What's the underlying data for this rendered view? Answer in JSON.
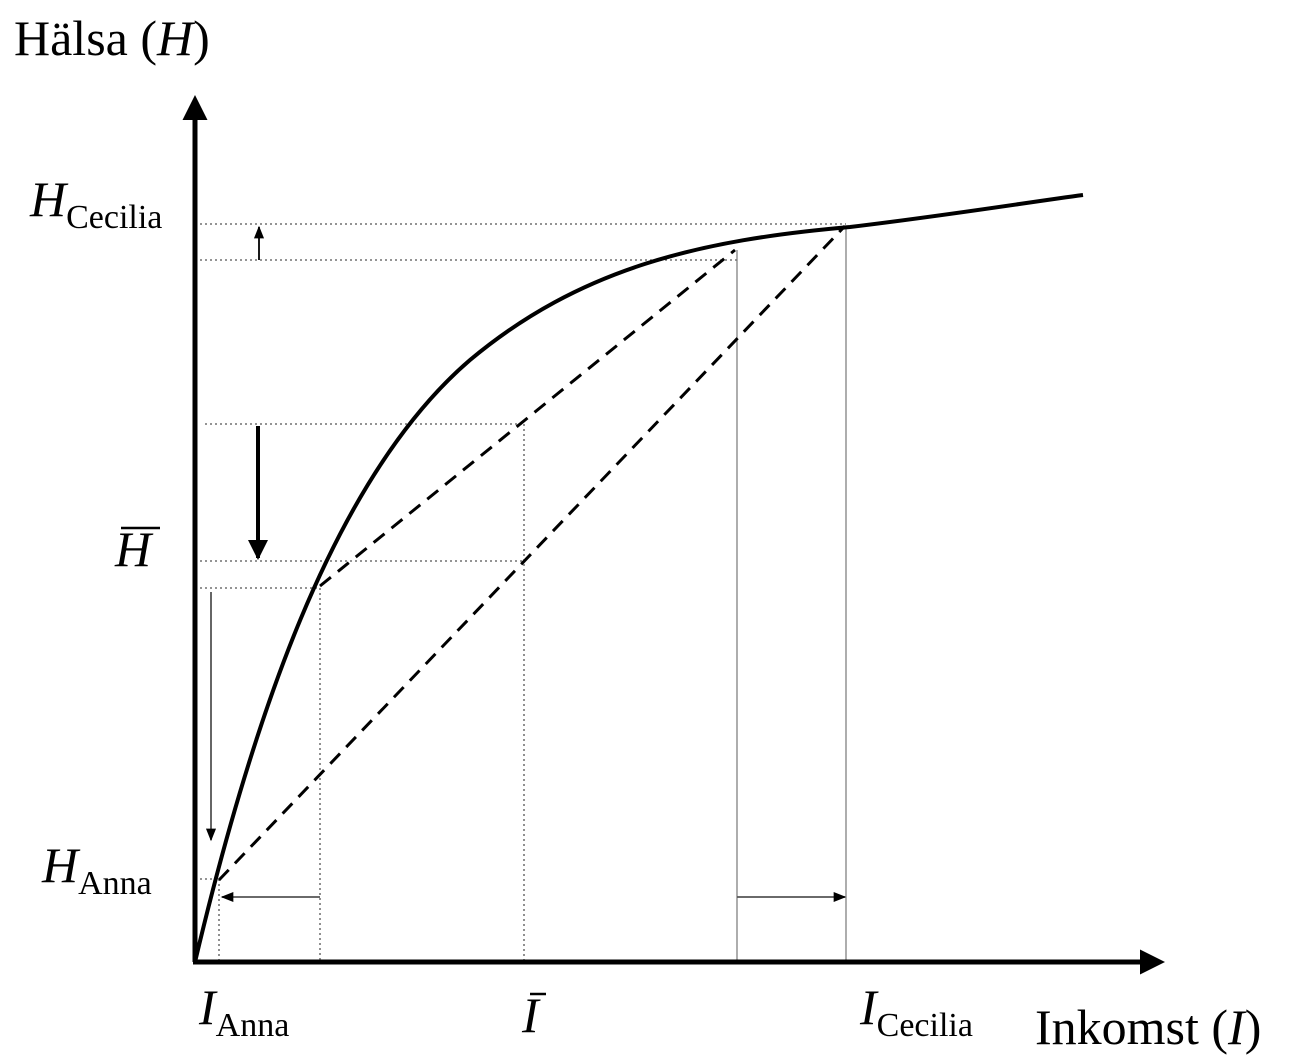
{
  "diagram": {
    "y_axis_label": {
      "prefix": "Hälsa (",
      "symbol": "H",
      "suffix": ")"
    },
    "x_axis_label": {
      "prefix": "Inkomst (",
      "symbol": "I",
      "suffix": ")"
    },
    "y_labels": {
      "h_cecilia": {
        "main": "H",
        "sub": "Cecilia"
      },
      "h_bar": {
        "main": "H"
      },
      "h_anna": {
        "main": "H",
        "sub": "Anna"
      }
    },
    "x_labels": {
      "i_anna": {
        "main": "I",
        "sub": "Anna"
      },
      "i_bar": {
        "main": "I"
      },
      "i_cecilia": {
        "main": "I",
        "sub": "Cecilia"
      }
    },
    "line_style": {
      "curve": "solid",
      "chords": "dashed",
      "guides": "dotted"
    },
    "colors": {
      "ink": "#000000",
      "guide": "#555555",
      "background": "#ffffff"
    }
  }
}
